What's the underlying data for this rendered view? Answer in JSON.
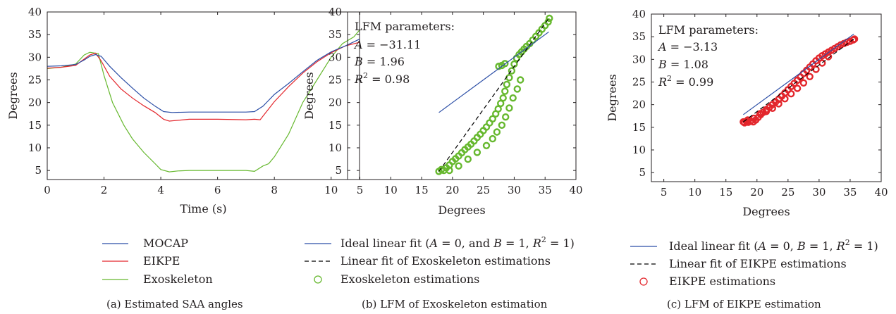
{
  "chart_data": [
    {
      "type": "line",
      "caption": "(a)  Estimated SAA angles",
      "xlabel": "Time (s)",
      "ylabel": "Degrees",
      "xlim": [
        0,
        11
      ],
      "ylim": [
        3,
        40
      ],
      "xticks": [
        0,
        2,
        4,
        6,
        8,
        10
      ],
      "yticks": [
        5,
        10,
        15,
        20,
        25,
        30,
        35,
        40
      ],
      "legend_position": "bottom",
      "series": [
        {
          "name": "MOCAP",
          "color": "#2b4ea6",
          "x": [
            0,
            0.5,
            1.0,
            1.3,
            1.5,
            1.7,
            1.9,
            2.2,
            2.6,
            3.0,
            3.4,
            3.8,
            4.1,
            4.4,
            5.0,
            6.0,
            7.0,
            7.3,
            7.6,
            8.0,
            8.5,
            9.0,
            9.5,
            10.0,
            10.5,
            11.0
          ],
          "y": [
            28.0,
            28.1,
            28.4,
            29.4,
            30.2,
            30.6,
            30.2,
            28.0,
            25.5,
            23.2,
            21.0,
            19.2,
            18.0,
            17.8,
            17.9,
            17.9,
            17.9,
            18.0,
            19.2,
            21.8,
            24.2,
            26.8,
            29.3,
            31.2,
            32.5,
            34.0
          ]
        },
        {
          "name": "EIKPE",
          "color": "#e3262c",
          "x": [
            0,
            0.5,
            1.0,
            1.3,
            1.5,
            1.7,
            1.9,
            2.2,
            2.6,
            3.0,
            3.4,
            3.8,
            4.1,
            4.3,
            5.0,
            6.0,
            7.0,
            7.3,
            7.5,
            7.7,
            8.0,
            8.5,
            9.0,
            9.5,
            10.0,
            10.5,
            11.0
          ],
          "y": [
            27.6,
            27.8,
            28.2,
            29.6,
            30.5,
            30.9,
            29.2,
            25.8,
            23.0,
            21.0,
            19.3,
            17.8,
            16.3,
            15.9,
            16.3,
            16.3,
            16.2,
            16.3,
            16.2,
            17.8,
            20.2,
            23.5,
            26.5,
            29.0,
            31.0,
            32.5,
            33.3
          ]
        },
        {
          "name": "Exoskeleton",
          "color": "#66b82e",
          "x": [
            0,
            0.5,
            1.0,
            1.3,
            1.5,
            1.8,
            2.0,
            2.3,
            2.7,
            3.0,
            3.4,
            3.8,
            4.0,
            4.3,
            4.6,
            5.0,
            6.0,
            7.0,
            7.3,
            7.6,
            7.8,
            8.0,
            8.5,
            9.0,
            9.5,
            10.0,
            10.4,
            10.8,
            11.0
          ],
          "y": [
            27.5,
            27.8,
            28.5,
            30.5,
            31.1,
            30.8,
            26.0,
            20.0,
            15.0,
            12.0,
            9.0,
            6.5,
            5.2,
            4.7,
            4.9,
            5.0,
            5.0,
            5.0,
            4.8,
            6.0,
            6.5,
            8.0,
            13.0,
            20.0,
            25.0,
            30.0,
            33.0,
            34.5,
            36.0
          ]
        }
      ]
    },
    {
      "type": "scatter",
      "caption": "(b)  LFM of Exoskeleton estimation",
      "xlabel": "Degrees",
      "ylabel": "Degrees",
      "xlim": [
        3,
        40
      ],
      "ylim": [
        3,
        40
      ],
      "xticks": [
        5,
        10,
        15,
        20,
        25,
        30,
        35,
        40
      ],
      "yticks": [
        5,
        10,
        15,
        20,
        25,
        30,
        35,
        40
      ],
      "annotation": {
        "title": "LFM parameters:",
        "A": "−31.11",
        "B": "1.96",
        "R2": "0.98"
      },
      "ideal_fit": {
        "x": [
          17.8,
          35.6
        ],
        "y": [
          17.8,
          35.6
        ]
      },
      "linear_fit": {
        "A": -31.11,
        "B": 1.96,
        "x": [
          17.8,
          35.6
        ]
      },
      "points": {
        "x": [
          17.8,
          18.2,
          18.6,
          19.0,
          19.5,
          20.0,
          20.5,
          21.0,
          21.5,
          22.0,
          22.5,
          23.0,
          23.5,
          24.0,
          24.5,
          25.0,
          25.5,
          26.0,
          26.5,
          27.0,
          27.4,
          27.8,
          28.2,
          28.5,
          28.8,
          29.2,
          29.6,
          30.0,
          30.4,
          30.8,
          31.2,
          31.6,
          32.0,
          32.5,
          33.0,
          33.5,
          34.0,
          34.5,
          35.0,
          35.5,
          35.7,
          19.5,
          21.0,
          22.5,
          24.0,
          25.5,
          26.5,
          27.2,
          28.0,
          28.6,
          29.2,
          29.8,
          30.5,
          31.0,
          27.5,
          28.0,
          28.5
        ],
        "y": [
          4.8,
          5.2,
          5.0,
          5.6,
          6.2,
          7.0,
          7.6,
          8.2,
          8.9,
          9.6,
          10.2,
          10.8,
          11.5,
          12.3,
          13.0,
          13.8,
          14.6,
          15.5,
          16.4,
          17.5,
          18.6,
          19.8,
          21.0,
          22.5,
          24.0,
          25.5,
          27.0,
          28.5,
          29.8,
          30.6,
          31.2,
          31.8,
          32.4,
          33.0,
          33.8,
          34.6,
          35.4,
          36.2,
          37.0,
          37.8,
          38.6,
          5.0,
          6.0,
          7.5,
          9.0,
          10.5,
          12.0,
          13.5,
          15.0,
          16.8,
          18.8,
          21.0,
          23.0,
          25.0,
          28.0,
          28.2,
          28.6
        ]
      },
      "legend_position": "bottom",
      "legend": [
        {
          "kind": "line",
          "color": "#2b4ea6",
          "label": "Ideal linear fit (A = 0, and B = 1, R2 = 1)"
        },
        {
          "kind": "dash",
          "color": "#000000",
          "label": "Linear fit of Exoskeleton estimations"
        },
        {
          "kind": "circle",
          "color": "#66b82e",
          "label": "Exoskeleton estimations"
        }
      ]
    },
    {
      "type": "scatter",
      "caption": "(c)  LFM of EIKPE estimation",
      "xlabel": "Degrees",
      "ylabel": "Degrees",
      "xlim": [
        3,
        40
      ],
      "ylim": [
        3,
        40
      ],
      "xticks": [
        5,
        10,
        15,
        20,
        25,
        30,
        35,
        40
      ],
      "yticks": [
        5,
        10,
        15,
        20,
        25,
        30,
        35,
        40
      ],
      "annotation": {
        "title": "LFM parameters:",
        "A": "−3.13",
        "B": "1.08",
        "R2": "0.99"
      },
      "ideal_fit": {
        "x": [
          17.8,
          35.6
        ],
        "y": [
          17.8,
          35.6
        ]
      },
      "linear_fit": {
        "A": -3.13,
        "B": 1.08,
        "x": [
          17.8,
          35.6
        ]
      },
      "points": {
        "x": [
          17.8,
          18.0,
          18.3,
          18.6,
          19.0,
          19.4,
          19.8,
          20.2,
          20.6,
          21.0,
          21.5,
          22.0,
          22.5,
          23.0,
          23.5,
          24.0,
          24.5,
          25.0,
          25.5,
          26.0,
          26.5,
          27.0,
          27.5,
          28.0,
          28.5,
          29.0,
          29.5,
          30.0,
          30.5,
          31.0,
          31.5,
          32.0,
          32.5,
          33.0,
          33.5,
          34.0,
          34.5,
          35.0,
          35.5,
          35.7,
          18.5,
          19.5,
          20.5,
          21.5,
          22.5,
          23.5,
          24.5,
          25.5,
          26.5,
          27.5,
          28.5,
          29.5,
          30.5,
          31.5
        ],
        "y": [
          16.2,
          16.0,
          16.3,
          16.1,
          16.4,
          16.2,
          16.6,
          17.2,
          17.8,
          18.3,
          18.9,
          19.4,
          20.0,
          20.6,
          21.2,
          21.9,
          22.6,
          23.3,
          24.0,
          24.7,
          25.4,
          26.1,
          26.9,
          27.6,
          28.3,
          29.0,
          29.7,
          30.3,
          30.8,
          31.2,
          31.6,
          32.0,
          32.4,
          32.8,
          33.2,
          33.5,
          33.8,
          34.0,
          34.3,
          34.5,
          16.6,
          17.0,
          18.0,
          18.5,
          19.2,
          20.2,
          21.3,
          22.4,
          23.6,
          24.8,
          26.2,
          27.8,
          29.2,
          30.6
        ]
      },
      "legend_position": "bottom",
      "legend": [
        {
          "kind": "line",
          "color": "#2b4ea6",
          "label": "Ideal linear fit (A = 0, B = 1, R2 = 1)"
        },
        {
          "kind": "dash",
          "color": "#000000",
          "label": "Linear fit of EIKPE estimations"
        },
        {
          "kind": "circle",
          "color": "#e3262c",
          "label": "EIKPE estimations"
        }
      ]
    }
  ]
}
